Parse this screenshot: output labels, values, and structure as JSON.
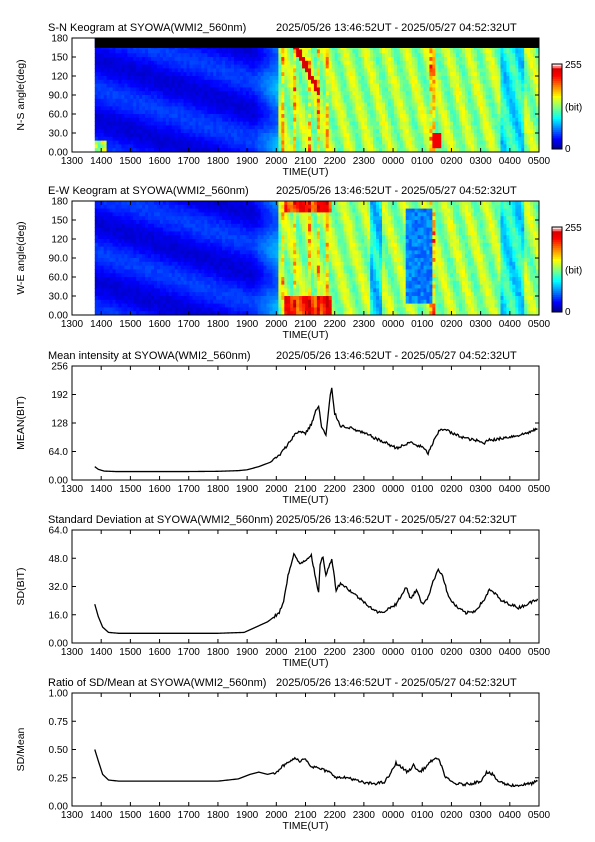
{
  "page": {
    "width": 595,
    "height": 842
  },
  "time_axis": {
    "ticks": [
      "1300",
      "1400",
      "1500",
      "1600",
      "1700",
      "1800",
      "1900",
      "2000",
      "2100",
      "2200",
      "2300",
      "0000",
      "0100",
      "0200",
      "0300",
      "0400",
      "0500"
    ],
    "xlabel": "TIME(UT)"
  },
  "chart_data": [
    {
      "type": "heatmap",
      "title": "S-N Keogram at SYOWA(WMI2_560nm)",
      "period": "2025/05/26 13:46:52UT - 2025/05/27 04:52:32UT",
      "ylabel": "N-S angle(deg)",
      "xlabel": "TIME(UT)",
      "yticks": [
        "0.00",
        "30.0",
        "60.0",
        "90.0",
        "120",
        "150",
        "180"
      ],
      "ylim": [
        0,
        180
      ],
      "colorbar": {
        "max_label": "255",
        "unit_label": "(bit)",
        "min_label": "0",
        "range": [
          0,
          255
        ]
      },
      "colors": {
        "low": "#0000b4",
        "mid": "#00e000",
        "high": "#ff0000"
      }
    },
    {
      "type": "heatmap",
      "title": "E-W Keogram at SYOWA(WMI2_560nm)",
      "period": "2025/05/26 13:46:52UT - 2025/05/27 04:52:32UT",
      "ylabel": "W-E angle(deg)",
      "xlabel": "TIME(UT)",
      "yticks": [
        "0.00",
        "30.0",
        "60.0",
        "90.0",
        "120",
        "150",
        "180"
      ],
      "ylim": [
        0,
        180
      ],
      "colorbar": {
        "max_label": "255",
        "unit_label": "(bit)",
        "min_label": "0",
        "range": [
          0,
          255
        ]
      },
      "colors": {
        "low": "#0000b4",
        "mid": "#00e000",
        "high": "#ff0000"
      }
    },
    {
      "type": "line",
      "title": "Mean intensity at SYOWA(WMI2_560nm)",
      "period": "2025/05/26 13:46:52UT - 2025/05/27 04:52:32UT",
      "ylabel": "MEAN(BIT)",
      "xlabel": "TIME(UT)",
      "yticks": [
        "0.00",
        "64.0",
        "128",
        "192",
        "256"
      ],
      "ylim": [
        0,
        256
      ],
      "series": [
        {
          "points": [
            [
              13.78,
              30
            ],
            [
              13.9,
              24
            ],
            [
              14.1,
              20
            ],
            [
              14.5,
              19
            ],
            [
              15,
              19
            ],
            [
              16,
              19
            ],
            [
              17,
              19
            ],
            [
              18,
              19.5
            ],
            [
              18.7,
              21
            ],
            [
              19,
              23
            ],
            [
              19.4,
              30
            ],
            [
              19.8,
              40
            ],
            [
              20.1,
              55
            ],
            [
              20.4,
              80
            ],
            [
              20.6,
              100
            ],
            [
              20.8,
              110
            ],
            [
              21.0,
              105
            ],
            [
              21.2,
              125
            ],
            [
              21.35,
              155
            ],
            [
              21.45,
              165
            ],
            [
              21.55,
              120
            ],
            [
              21.7,
              100
            ],
            [
              21.85,
              190
            ],
            [
              21.9,
              205
            ],
            [
              22.0,
              150
            ],
            [
              22.2,
              122
            ],
            [
              22.5,
              118
            ],
            [
              22.8,
              110
            ],
            [
              23.2,
              100
            ],
            [
              23.5,
              90
            ],
            [
              23.8,
              82
            ],
            [
              24.1,
              72
            ],
            [
              24.4,
              78
            ],
            [
              24.6,
              85
            ],
            [
              24.8,
              78
            ],
            [
              25.0,
              74
            ],
            [
              25.2,
              60
            ],
            [
              25.4,
              88
            ],
            [
              25.6,
              112
            ],
            [
              25.8,
              115
            ],
            [
              26.0,
              105
            ],
            [
              26.3,
              98
            ],
            [
              26.6,
              92
            ],
            [
              26.9,
              88
            ],
            [
              27.1,
              82
            ],
            [
              27.3,
              92
            ],
            [
              27.5,
              90
            ],
            [
              27.8,
              95
            ],
            [
              28.1,
              98
            ],
            [
              28.4,
              102
            ],
            [
              28.7,
              108
            ],
            [
              28.95,
              115
            ]
          ]
        }
      ]
    },
    {
      "type": "line",
      "title": "Standard Deviation at SYOWA(WMI2_560nm)",
      "period": "2025/05/26 13:46:52UT - 2025/05/27 04:52:32UT",
      "ylabel": "SD(BIT)",
      "xlabel": "TIME(UT)",
      "yticks": [
        "0.00",
        "16.0",
        "32.0",
        "48.0",
        "64.0"
      ],
      "ylim": [
        0,
        64
      ],
      "series": [
        {
          "points": [
            [
              13.78,
              22
            ],
            [
              13.9,
              15
            ],
            [
              14.05,
              9
            ],
            [
              14.25,
              6
            ],
            [
              14.6,
              5.5
            ],
            [
              15,
              5.5
            ],
            [
              16,
              5.5
            ],
            [
              17,
              5.5
            ],
            [
              18,
              5.5
            ],
            [
              18.9,
              6
            ],
            [
              19.3,
              9
            ],
            [
              19.7,
              12
            ],
            [
              20.1,
              17
            ],
            [
              20.25,
              24
            ],
            [
              20.4,
              38
            ],
            [
              20.6,
              50
            ],
            [
              20.8,
              45
            ],
            [
              21.0,
              47
            ],
            [
              21.2,
              50
            ],
            [
              21.35,
              36
            ],
            [
              21.45,
              28
            ],
            [
              21.5,
              45
            ],
            [
              21.6,
              49
            ],
            [
              21.7,
              38
            ],
            [
              21.9,
              48
            ],
            [
              22.05,
              30
            ],
            [
              22.2,
              34
            ],
            [
              22.5,
              30
            ],
            [
              22.8,
              26
            ],
            [
              23.1,
              22
            ],
            [
              23.4,
              18
            ],
            [
              23.6,
              17
            ],
            [
              23.9,
              20
            ],
            [
              24.1,
              22
            ],
            [
              24.3,
              27
            ],
            [
              24.45,
              32
            ],
            [
              24.6,
              25
            ],
            [
              24.8,
              30
            ],
            [
              25.0,
              22
            ],
            [
              25.2,
              26
            ],
            [
              25.4,
              36
            ],
            [
              25.55,
              42
            ],
            [
              25.7,
              38
            ],
            [
              25.9,
              26
            ],
            [
              26.2,
              20
            ],
            [
              26.5,
              17
            ],
            [
              26.8,
              18
            ],
            [
              27.1,
              24
            ],
            [
              27.3,
              30
            ],
            [
              27.5,
              28
            ],
            [
              27.7,
              24
            ],
            [
              28.0,
              22
            ],
            [
              28.3,
              20
            ],
            [
              28.6,
              22
            ],
            [
              28.95,
              25
            ]
          ]
        }
      ]
    },
    {
      "type": "line",
      "title": "Ratio of SD/Mean at SYOWA(WMI2_560nm)",
      "period": "2025/05/26 13:46:52UT - 2025/05/27 04:52:32UT",
      "ylabel": "SD/Mean",
      "xlabel": "TIME(UT)",
      "yticks": [
        "0.00",
        "0.25",
        "0.50",
        "0.75",
        "1.00"
      ],
      "ylim": [
        0,
        1
      ],
      "series": [
        {
          "points": [
            [
              13.78,
              0.5
            ],
            [
              13.9,
              0.4
            ],
            [
              14.05,
              0.28
            ],
            [
              14.25,
              0.23
            ],
            [
              14.6,
              0.22
            ],
            [
              15,
              0.22
            ],
            [
              16,
              0.22
            ],
            [
              17,
              0.22
            ],
            [
              18,
              0.22
            ],
            [
              18.7,
              0.24
            ],
            [
              19.1,
              0.28
            ],
            [
              19.4,
              0.3
            ],
            [
              19.7,
              0.28
            ],
            [
              20.0,
              0.3
            ],
            [
              20.2,
              0.35
            ],
            [
              20.4,
              0.38
            ],
            [
              20.6,
              0.42
            ],
            [
              20.8,
              0.4
            ],
            [
              21.0,
              0.42
            ],
            [
              21.2,
              0.35
            ],
            [
              21.5,
              0.33
            ],
            [
              21.8,
              0.3
            ],
            [
              22.1,
              0.25
            ],
            [
              22.5,
              0.25
            ],
            [
              22.8,
              0.22
            ],
            [
              23.1,
              0.2
            ],
            [
              23.4,
              0.2
            ],
            [
              23.7,
              0.21
            ],
            [
              23.9,
              0.28
            ],
            [
              24.1,
              0.38
            ],
            [
              24.3,
              0.34
            ],
            [
              24.5,
              0.3
            ],
            [
              24.7,
              0.36
            ],
            [
              24.9,
              0.3
            ],
            [
              25.1,
              0.34
            ],
            [
              25.4,
              0.42
            ],
            [
              25.6,
              0.4
            ],
            [
              25.8,
              0.25
            ],
            [
              26.1,
              0.2
            ],
            [
              26.4,
              0.19
            ],
            [
              26.7,
              0.2
            ],
            [
              27.0,
              0.22
            ],
            [
              27.2,
              0.3
            ],
            [
              27.4,
              0.28
            ],
            [
              27.6,
              0.22
            ],
            [
              27.9,
              0.19
            ],
            [
              28.2,
              0.18
            ],
            [
              28.5,
              0.19
            ],
            [
              28.75,
              0.2
            ],
            [
              28.95,
              0.22
            ]
          ]
        }
      ]
    }
  ]
}
